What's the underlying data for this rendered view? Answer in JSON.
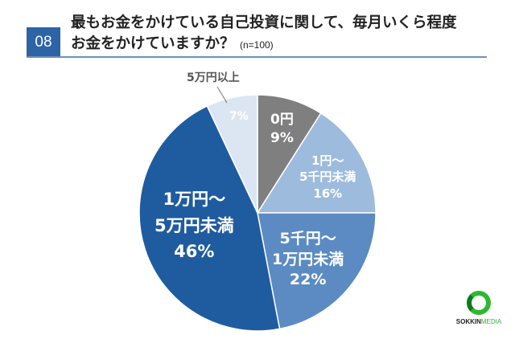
{
  "header": {
    "number": "08",
    "title_line1": "最もお金をかけている自己投資に関して、毎月いくら程度",
    "title_line2": "お金をかけていますか？",
    "sample": "(n=100)"
  },
  "chart_data": {
    "type": "pie",
    "title": "最もお金をかけている自己投資に関して、毎月いくら程度お金をかけていますか？ (n=100)",
    "unit": "%",
    "start": "top",
    "direction": "clockwise",
    "slices": [
      {
        "label": "0円",
        "value": 9,
        "display": "9%",
        "color": "#7f7f7f"
      },
      {
        "label": "1円～5千円未満",
        "value": 16,
        "display": "16%",
        "color": "#9dbbdc"
      },
      {
        "label": "5千円～1万円未満",
        "value": 22,
        "display": "22%",
        "color": "#5b8bc2"
      },
      {
        "label": "1万円～5万円未満",
        "value": 46,
        "display": "46%",
        "color": "#1f5c9f"
      },
      {
        "label": "5万円以上",
        "value": 7,
        "display": "7%",
        "color": "#dce6f2"
      }
    ]
  },
  "labels": {
    "s0a": "0円",
    "s1a": "1円～",
    "s1b": "5千円未満",
    "s2a": "5千円～",
    "s2b": "1万円未満",
    "s3a": "1万円～",
    "s3b": "5万円未満",
    "s4a": "5万円以上"
  },
  "logo": {
    "brand1": "SOKKIN",
    "brand2": "MEDIA"
  }
}
